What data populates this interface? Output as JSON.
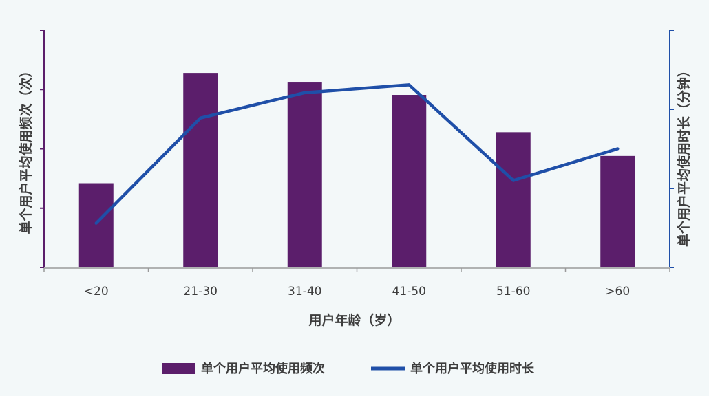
{
  "colors": {
    "background": "#f3f8f9",
    "bar": "#5b1e6b",
    "line": "#1f4fa8",
    "left_axis": "#5b1e6b",
    "right_axis": "#1f4fa8",
    "bottom_axis": "#9a9a9a",
    "text": "#3d3d3d"
  },
  "chart_data": {
    "type": "bar",
    "categories": [
      "<20",
      "21-30",
      "31-40",
      "41-50",
      "51-60",
      ">60"
    ],
    "xlabel": "用户年龄（岁）",
    "ylabel_left": "单个用户平均使用频次（次）",
    "ylabel_right": "单个用户平均使用时长（分钟）",
    "ylim_left": [
      0,
      4
    ],
    "ylim_right": [
      0,
      3
    ],
    "grid": false,
    "legend_position": "bottom",
    "series": [
      {
        "name": "单个用户平均使用频次",
        "type": "bar",
        "axis": "left",
        "values": [
          1.42,
          3.28,
          3.13,
          2.91,
          2.28,
          1.88
        ]
      },
      {
        "name": "单个用户平均使用时长",
        "type": "line",
        "axis": "right",
        "values": [
          0.56,
          1.89,
          2.21,
          2.31,
          1.1,
          1.5
        ]
      }
    ]
  }
}
